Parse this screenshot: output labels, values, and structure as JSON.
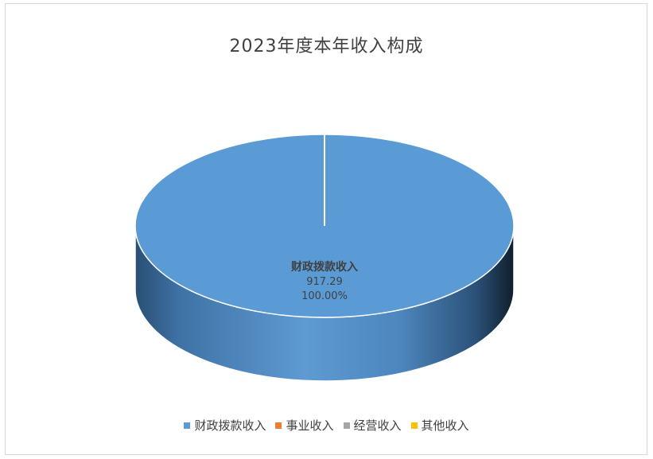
{
  "chart_data": {
    "type": "pie",
    "title": "2023年度本年收入构成",
    "style": "3d",
    "categories": [
      "财政拨款收入",
      "事业收入",
      "经营收入",
      "其他收入"
    ],
    "values": [
      917.29,
      0,
      0,
      0
    ],
    "percent_labels": [
      "100.00%",
      "",
      "",
      ""
    ],
    "value_labels": [
      "917.29",
      "",
      "",
      ""
    ],
    "colors": [
      "#5b9bd5",
      "#ed7d31",
      "#a5a5a5",
      "#ffc000"
    ],
    "legend_position": "bottom"
  }
}
